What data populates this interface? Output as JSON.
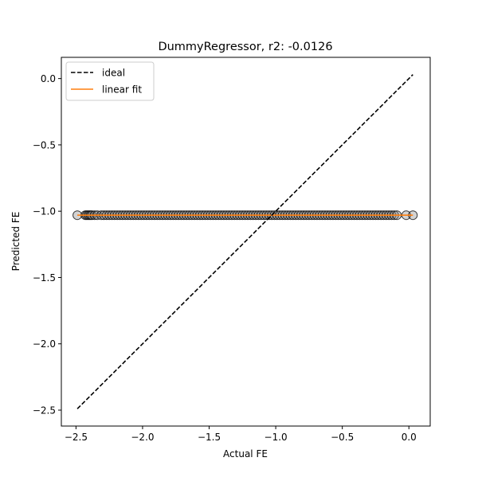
{
  "chart_data": {
    "type": "scatter",
    "title": "DummyRegressor, r2: -0.0126",
    "xlabel": "Actual FE",
    "ylabel": "Predicted FE",
    "xlim": [
      -2.61,
      0.16
    ],
    "ylim": [
      -2.62,
      0.16
    ],
    "x_ticks": [
      -2.5,
      -2.0,
      -1.5,
      -1.0,
      -0.5,
      0.0
    ],
    "x_tick_labels": [
      "−2.5",
      "−2.0",
      "−1.5",
      "−1.0",
      "−0.5",
      "0.0"
    ],
    "y_ticks": [
      0.0,
      -0.5,
      -1.0,
      -1.5,
      -2.0,
      -2.5
    ],
    "y_tick_labels": [
      "0.0",
      "−0.5",
      "−1.0",
      "−1.5",
      "−2.0",
      "−2.5"
    ],
    "grid": false,
    "legend_position": "top-left",
    "legend": [
      {
        "label": "ideal",
        "style": "dashed",
        "color": "#000000"
      },
      {
        "label": "linear fit",
        "style": "solid",
        "color": "#ff7f0e"
      }
    ],
    "ideal_line": {
      "x": [
        -2.49,
        0.03
      ],
      "y": [
        -2.49,
        0.03
      ]
    },
    "linear_fit": {
      "x": [
        -2.49,
        0.03
      ],
      "y": [
        -1.03,
        -1.03
      ]
    },
    "points_color": "#808080",
    "points_y": -1.03,
    "points_x": [
      -2.49,
      -2.43,
      -2.42,
      -2.41,
      -2.4,
      -2.39,
      -2.38,
      -2.36,
      -2.34,
      -2.31,
      -2.29,
      -2.27,
      -2.25,
      -2.23,
      -2.21,
      -2.19,
      -2.17,
      -2.15,
      -2.13,
      -2.11,
      -2.09,
      -2.07,
      -2.05,
      -2.03,
      -2.01,
      -1.99,
      -1.97,
      -1.95,
      -1.93,
      -1.91,
      -1.89,
      -1.87,
      -1.85,
      -1.83,
      -1.81,
      -1.79,
      -1.77,
      -1.75,
      -1.73,
      -1.71,
      -1.69,
      -1.67,
      -1.65,
      -1.63,
      -1.61,
      -1.59,
      -1.57,
      -1.55,
      -1.53,
      -1.51,
      -1.49,
      -1.47,
      -1.45,
      -1.43,
      -1.41,
      -1.39,
      -1.37,
      -1.35,
      -1.33,
      -1.31,
      -1.29,
      -1.27,
      -1.25,
      -1.23,
      -1.21,
      -1.19,
      -1.17,
      -1.15,
      -1.13,
      -1.11,
      -1.09,
      -1.07,
      -1.05,
      -1.03,
      -1.01,
      -0.99,
      -0.97,
      -0.95,
      -0.93,
      -0.91,
      -0.89,
      -0.87,
      -0.85,
      -0.83,
      -0.81,
      -0.79,
      -0.77,
      -0.75,
      -0.73,
      -0.71,
      -0.69,
      -0.67,
      -0.65,
      -0.63,
      -0.61,
      -0.59,
      -0.57,
      -0.55,
      -0.53,
      -0.51,
      -0.49,
      -0.47,
      -0.45,
      -0.43,
      -0.41,
      -0.39,
      -0.37,
      -0.35,
      -0.33,
      -0.31,
      -0.29,
      -0.27,
      -0.25,
      -0.23,
      -0.21,
      -0.19,
      -0.17,
      -0.15,
      -0.13,
      -0.11,
      -0.09,
      -0.02,
      0.03
    ]
  }
}
